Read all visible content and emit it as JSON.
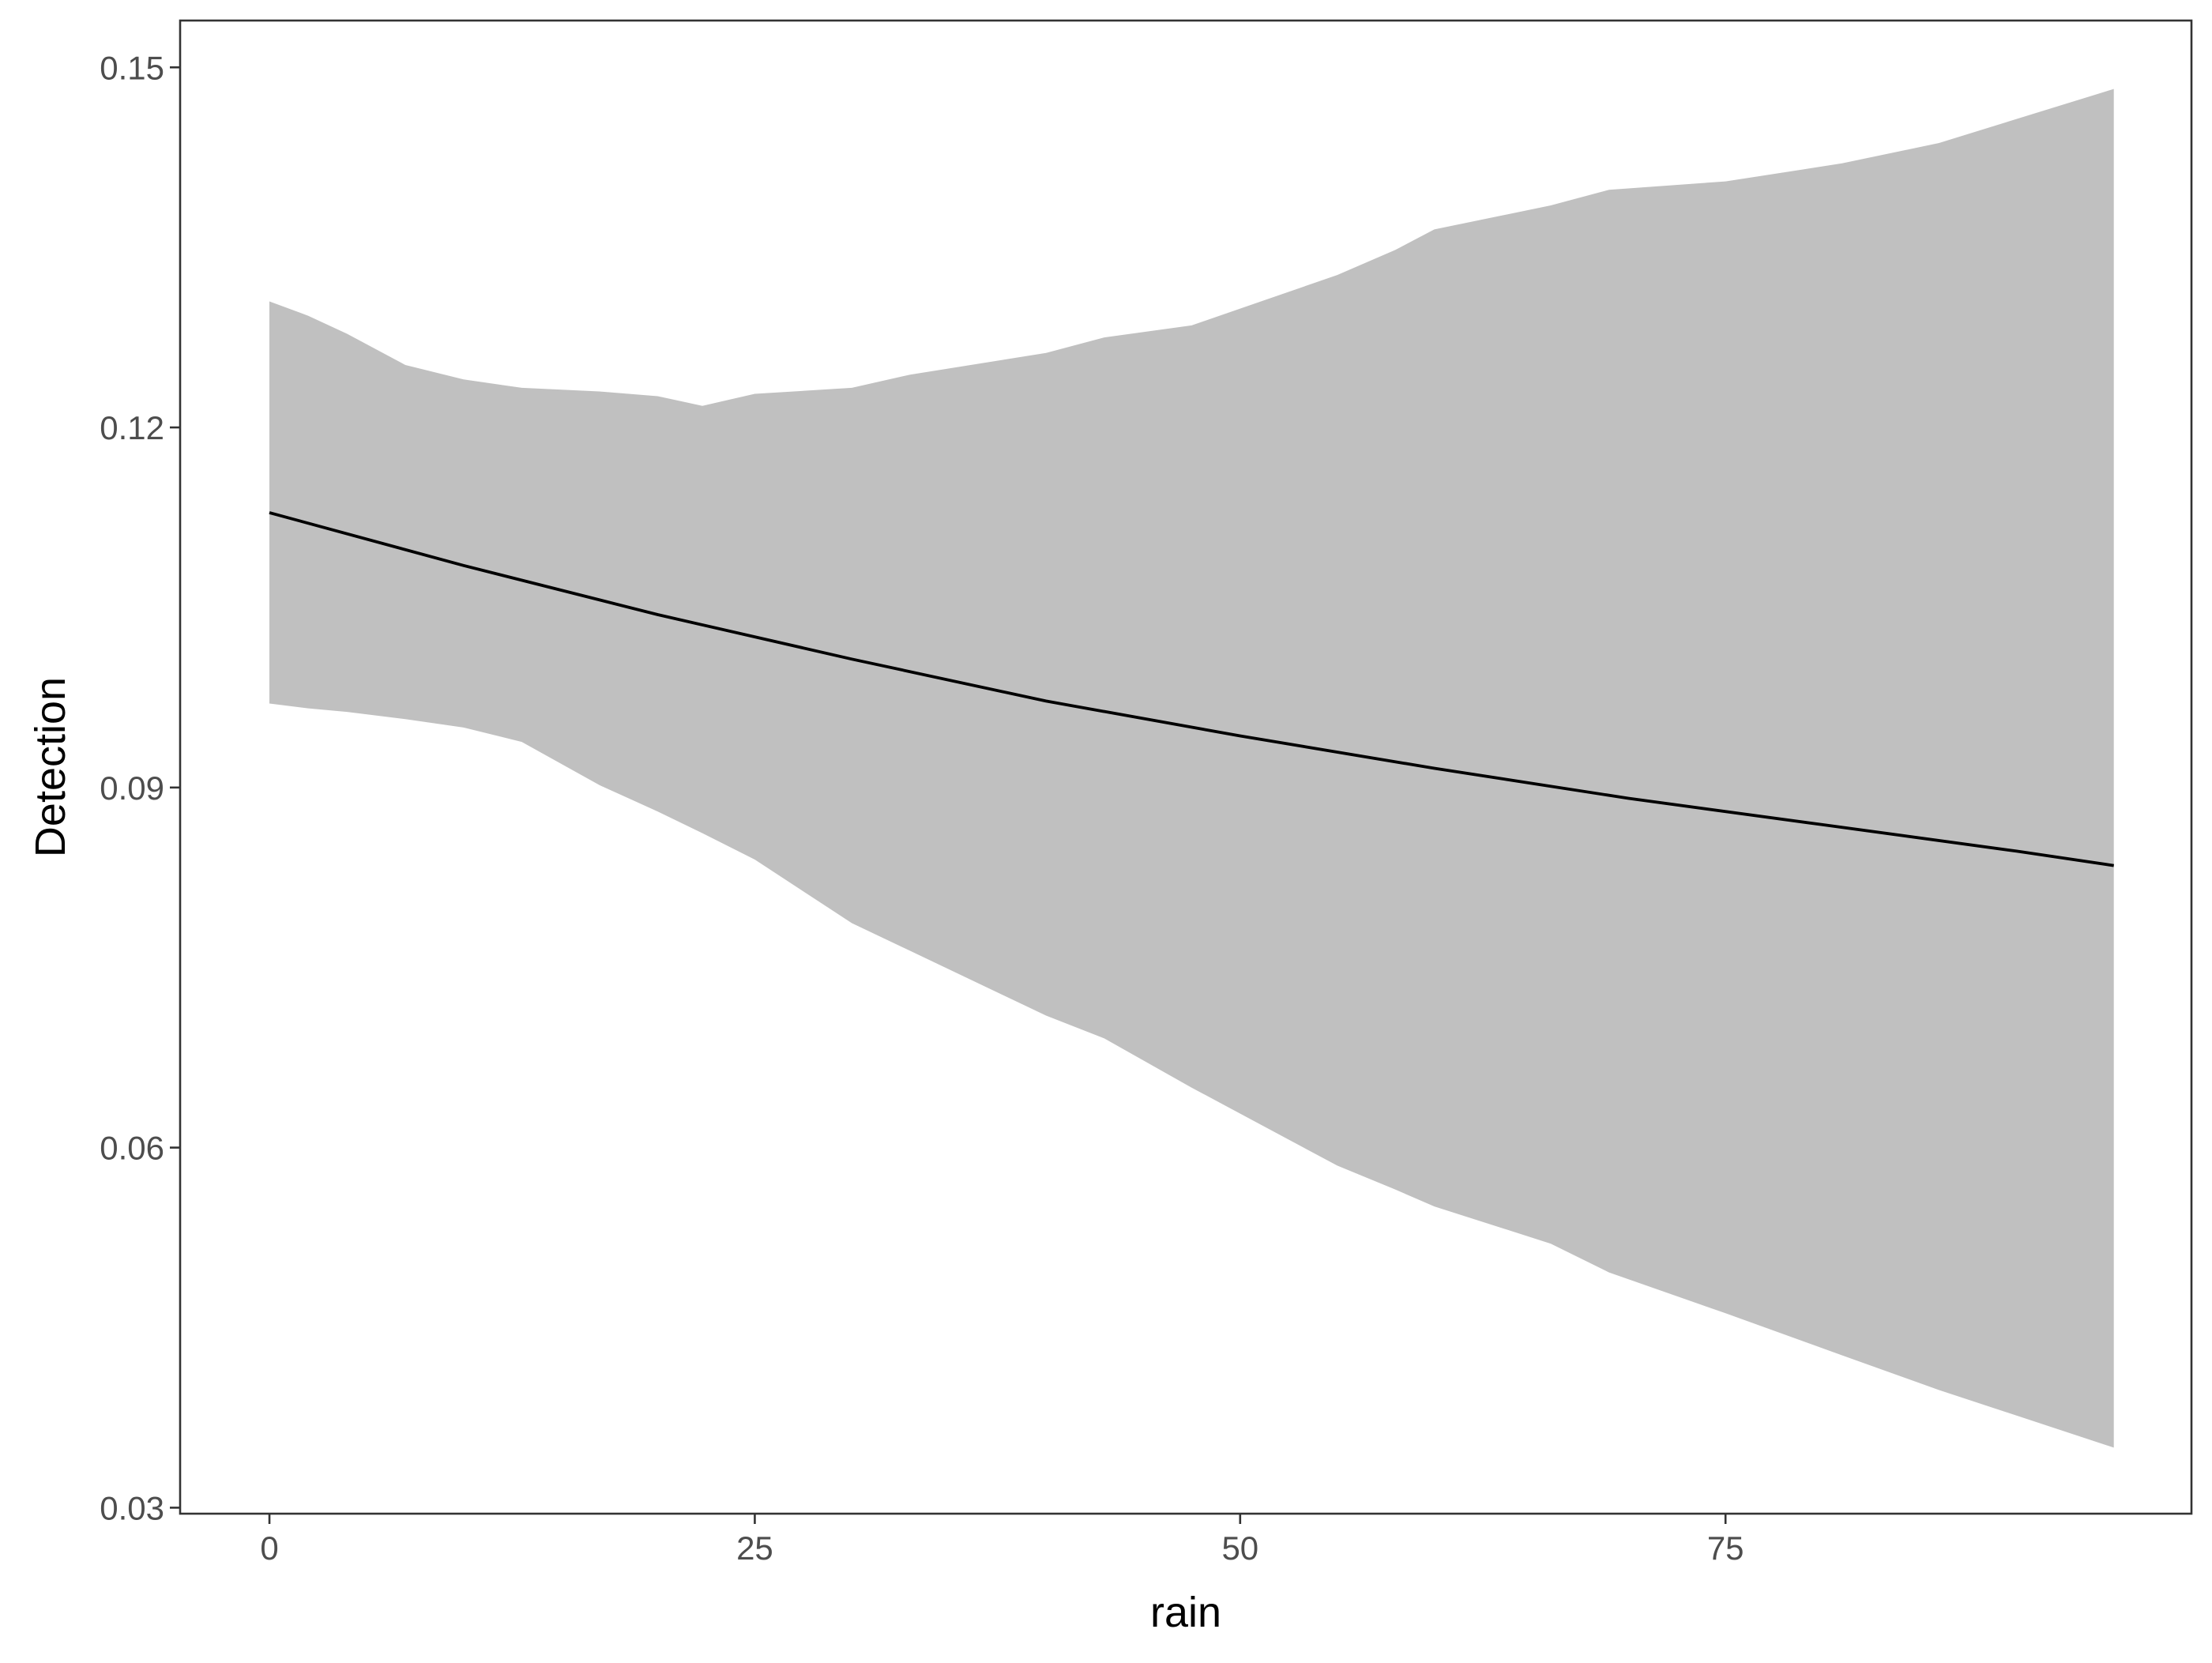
{
  "chart_data": {
    "type": "line",
    "title": "",
    "xlabel": "rain",
    "ylabel": "Detection",
    "xlim": [
      -4.6,
      99.0
    ],
    "ylim": [
      0.0295,
      0.1539
    ],
    "x_ticks": [
      {
        "value": 0,
        "label": "0"
      },
      {
        "value": 25,
        "label": "25"
      },
      {
        "value": 50,
        "label": "50"
      },
      {
        "value": 75,
        "label": "75"
      }
    ],
    "y_ticks": [
      {
        "value": 0.03,
        "label": "0.03"
      },
      {
        "value": 0.06,
        "label": "0.06"
      },
      {
        "value": 0.09,
        "label": "0.09"
      },
      {
        "value": 0.12,
        "label": "0.12"
      },
      {
        "value": 0.15,
        "label": "0.15"
      }
    ],
    "grid": false,
    "legend": "none",
    "series": [
      {
        "kind": "line",
        "color": "#000000",
        "x": [
          0,
          10,
          20,
          30,
          40,
          50,
          60,
          70,
          80,
          90,
          95
        ],
        "y": [
          0.1129,
          0.1085,
          0.1044,
          0.1007,
          0.0972,
          0.0943,
          0.0916,
          0.0891,
          0.0869,
          0.0847,
          0.0835
        ]
      },
      {
        "kind": "band",
        "color": "#c0c0c0",
        "x": [
          0,
          2,
          4,
          7,
          10,
          13,
          17,
          20,
          22.3,
          25,
          30,
          33,
          40,
          43,
          47.5,
          55,
          58,
          60,
          66,
          69,
          75,
          81,
          86,
          95
        ],
        "upper": [
          0.1305,
          0.1293,
          0.1278,
          0.1252,
          0.124,
          0.1233,
          0.123,
          0.1226,
          0.1218,
          0.1228,
          0.1233,
          0.1244,
          0.1262,
          0.1275,
          0.1285,
          0.1327,
          0.1348,
          0.1365,
          0.1385,
          0.1398,
          0.1405,
          0.142,
          0.1437,
          0.1482
        ],
        "lower": [
          0.097,
          0.0966,
          0.0963,
          0.0957,
          0.095,
          0.0938,
          0.0902,
          0.088,
          0.0862,
          0.084,
          0.0787,
          0.0764,
          0.071,
          0.0691,
          0.065,
          0.0585,
          0.0565,
          0.0551,
          0.052,
          0.0496,
          0.0462,
          0.0427,
          0.0398,
          0.035
        ]
      }
    ]
  }
}
